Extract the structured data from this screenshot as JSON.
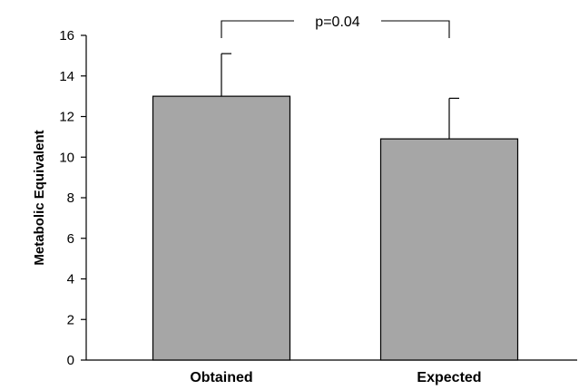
{
  "chart_data": {
    "type": "bar",
    "categories": [
      "Obtained",
      "Expected"
    ],
    "series": [
      {
        "values": [
          13.0,
          10.9
        ],
        "error_upper": [
          2.1,
          2.0
        ],
        "color": "#a6a6a6"
      }
    ],
    "title": "",
    "xlabel": "",
    "ylabel": "Metabolic Equivalent",
    "ylim": [
      0,
      16
    ],
    "yticks": [
      0,
      2,
      4,
      6,
      8,
      10,
      12,
      14,
      16
    ],
    "grid": false,
    "legend": "none",
    "annotations": [
      {
        "text": "p=0.04",
        "type": "significance-bracket",
        "between": [
          "Obtained",
          "Expected"
        ]
      }
    ]
  }
}
